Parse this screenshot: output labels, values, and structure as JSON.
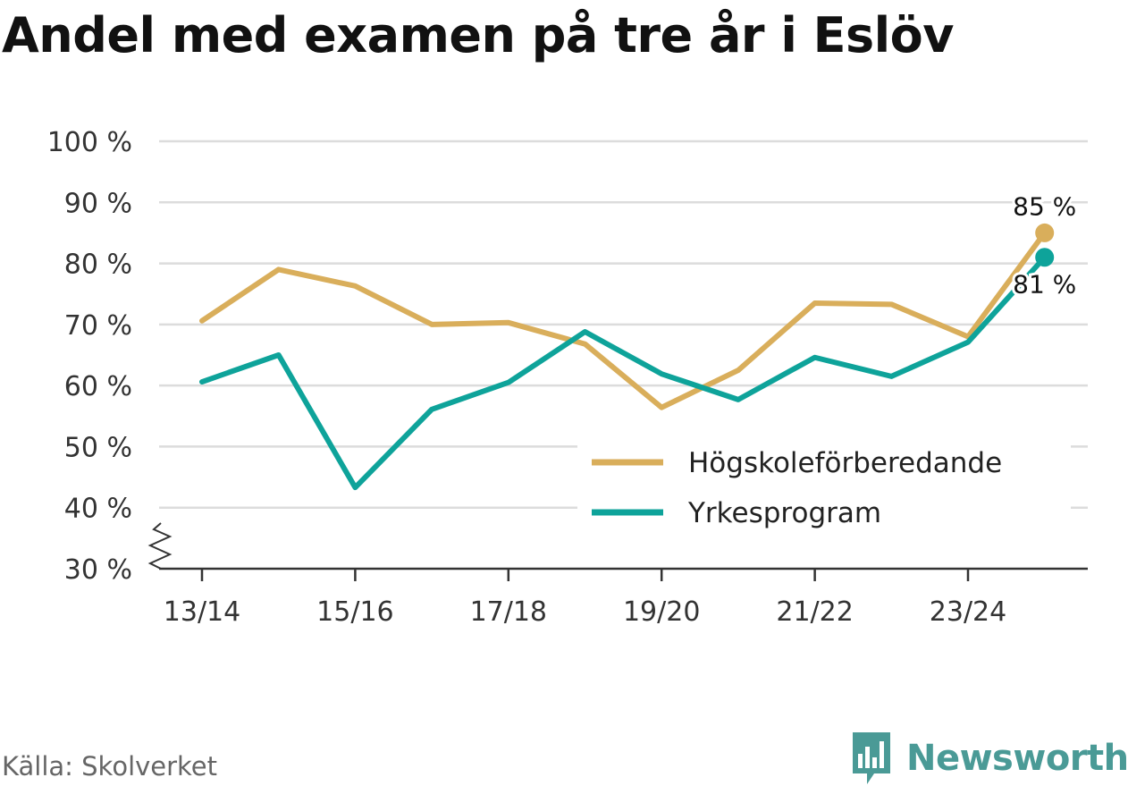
{
  "title": "Andel med examen på tre år i Eslöv",
  "source": "Källa: Skolverket",
  "brand": "Newsworthy",
  "icon": "newsworthy-logo-icon",
  "chart_data": {
    "type": "line",
    "categories": [
      "13/14",
      "14/15",
      "15/16",
      "16/17",
      "17/18",
      "18/19",
      "19/20",
      "20/21",
      "21/22",
      "22/23",
      "23/24",
      "24/25"
    ],
    "x_tick_labels": [
      "13/14",
      "",
      "15/16",
      "",
      "17/18",
      "",
      "19/20",
      "",
      "21/22",
      "",
      "23/24",
      ""
    ],
    "y_ticks": [
      30,
      40,
      50,
      60,
      70,
      80,
      90,
      100
    ],
    "y_tick_labels": [
      "30 %",
      "40 %",
      "50 %",
      "60 %",
      "70 %",
      "80 %",
      "90 %",
      "100 %"
    ],
    "ylim": [
      30,
      100
    ],
    "y_axis_break": true,
    "grid": true,
    "legend_position": "bottom-right",
    "series": [
      {
        "name": "Högskoleförberedande",
        "color": "#d9ae5b",
        "values": [
          70.6,
          79,
          76.3,
          70,
          70.3,
          66.8,
          56.4,
          62.5,
          73.5,
          73.3,
          68,
          85
        ],
        "end_label": "85 %"
      },
      {
        "name": "Yrkesprogram",
        "color": "#0ea39a",
        "values": [
          60.6,
          65,
          43.3,
          56.1,
          60.5,
          68.8,
          61.9,
          57.7,
          64.6,
          61.5,
          67.1,
          81
        ],
        "end_label": "81 %"
      }
    ]
  }
}
